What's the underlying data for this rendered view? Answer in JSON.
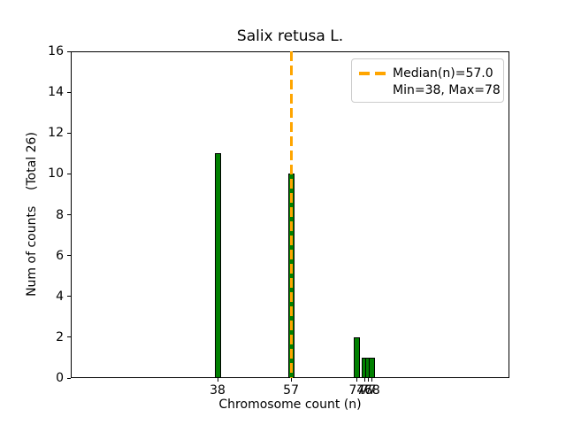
{
  "chart_data": {
    "type": "bar",
    "title": "Salix retusa L.",
    "xlabel": "Chromosome count (n)",
    "ylabel": "Num of counts    (Total 26)",
    "total": 26,
    "x": [
      38,
      57,
      74,
      76,
      77,
      78
    ],
    "values": [
      11,
      10,
      2,
      1,
      1,
      1
    ],
    "xticks": [
      "38",
      "57",
      "74",
      "76",
      "77",
      "78"
    ],
    "yticks": [
      "0",
      "2",
      "4",
      "6",
      "8",
      "10",
      "12",
      "14",
      "16"
    ],
    "xlim": [
      0,
      113.5
    ],
    "ylim": [
      0,
      16
    ],
    "grid": false,
    "bar_color": "#008000",
    "bar_edge_color": "#000000",
    "median_line": {
      "x": 57,
      "value": 57.0,
      "color": "#FFA500",
      "style": "dashed"
    },
    "legend": {
      "position": "upper right",
      "entries": [
        {
          "label": "Median(n)=57.0",
          "marker": "orange-dashed-line",
          "color": "#FFA500"
        },
        {
          "label": "Min=38, Max=78",
          "marker": "none"
        }
      ]
    }
  }
}
